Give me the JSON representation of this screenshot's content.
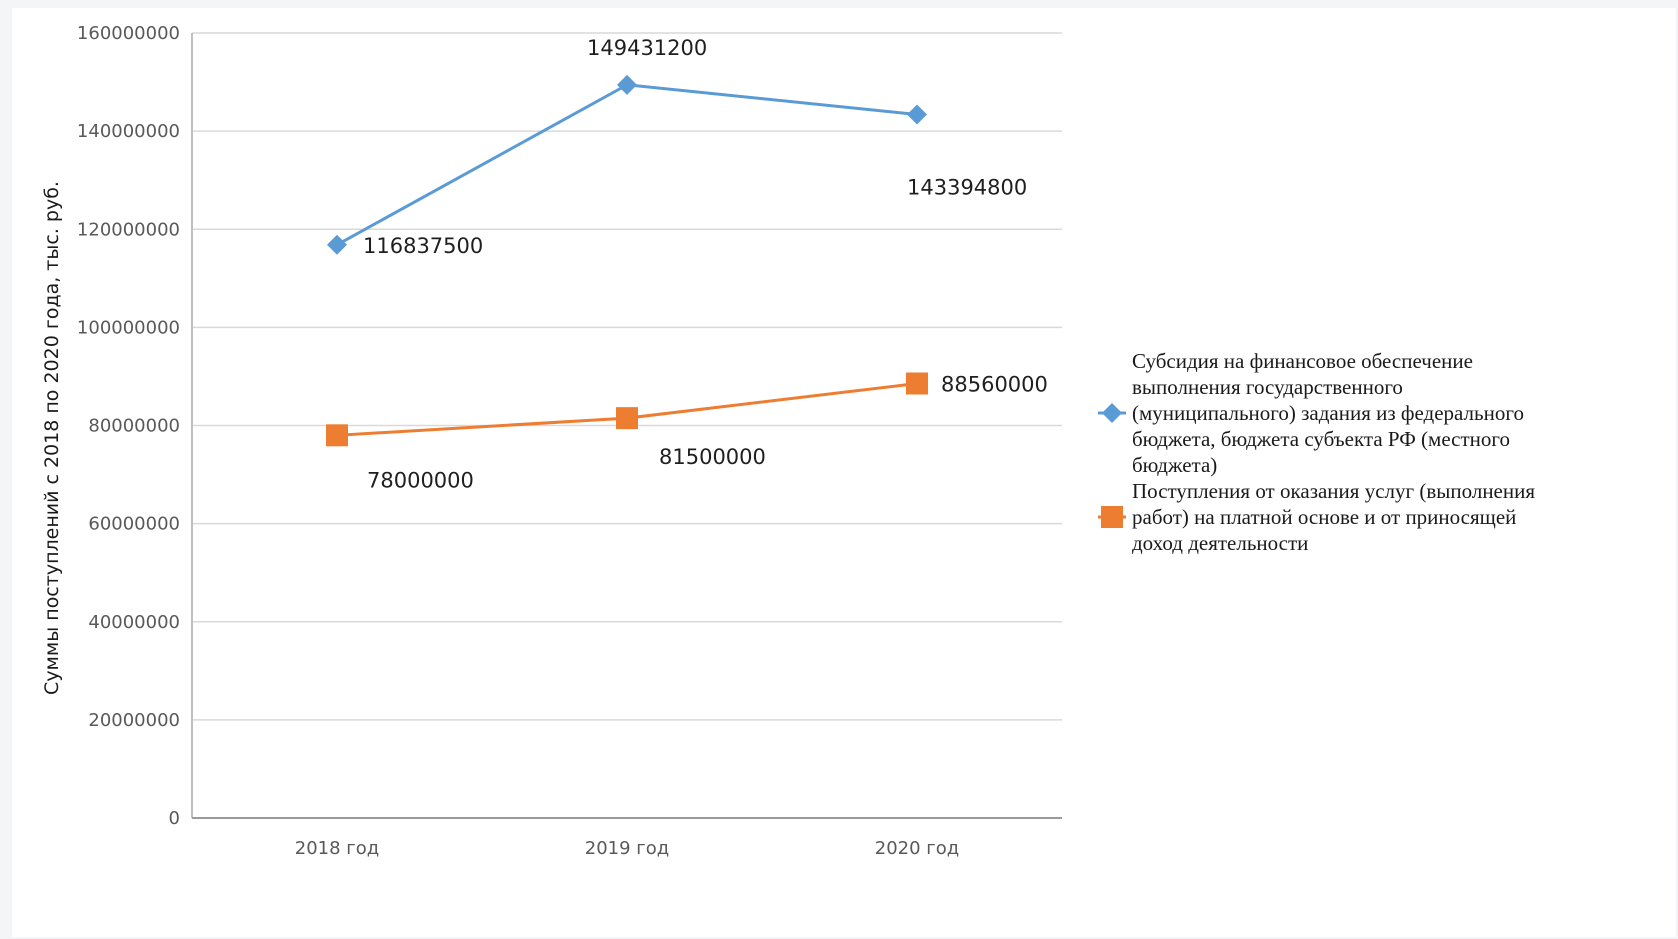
{
  "chart_data": {
    "type": "line",
    "categories": [
      "2018 год",
      "2019 год",
      "2020 год"
    ],
    "ylabel": "Суммы поступлений с 2018 по 2020 года, тыс. руб.",
    "xlabel": "",
    "ylim": [
      0,
      160000000
    ],
    "yticks": [
      "0",
      "20000000",
      "40000000",
      "60000000",
      "80000000",
      "100000000",
      "120000000",
      "140000000",
      "160000000"
    ],
    "grid": true,
    "legend_position": "right",
    "series": [
      {
        "name": "Субсидия на финансовое обеспечение выполнения государственного (муниципального) задания из федерального бюджета, бюджета субъекта РФ (местного бюджета)",
        "legend_lines": [
          "Субсидия на финансовое обеспечение",
          "выполнения государственного",
          "(муниципального) задания из федерального",
          "бюджета, бюджета субъекта РФ (местного",
          "бюджета)"
        ],
        "values": [
          116837500,
          149431200,
          143394800
        ],
        "labels": [
          "116837500",
          "149431200",
          "143394800"
        ],
        "color": "#5b9bd5",
        "marker": "diamond"
      },
      {
        "name": "Поступления от оказания услуг (выполнения работ) на платной основе и от приносящей доход деятельности",
        "legend_lines": [
          "Поступления от оказания услуг (выполнения",
          "работ) на платной основе и от приносящей",
          "доход деятельности"
        ],
        "values": [
          78000000,
          81500000,
          88560000
        ],
        "labels": [
          "78000000",
          "81500000",
          "88560000"
        ],
        "color": "#ed7d31",
        "marker": "square"
      }
    ]
  }
}
